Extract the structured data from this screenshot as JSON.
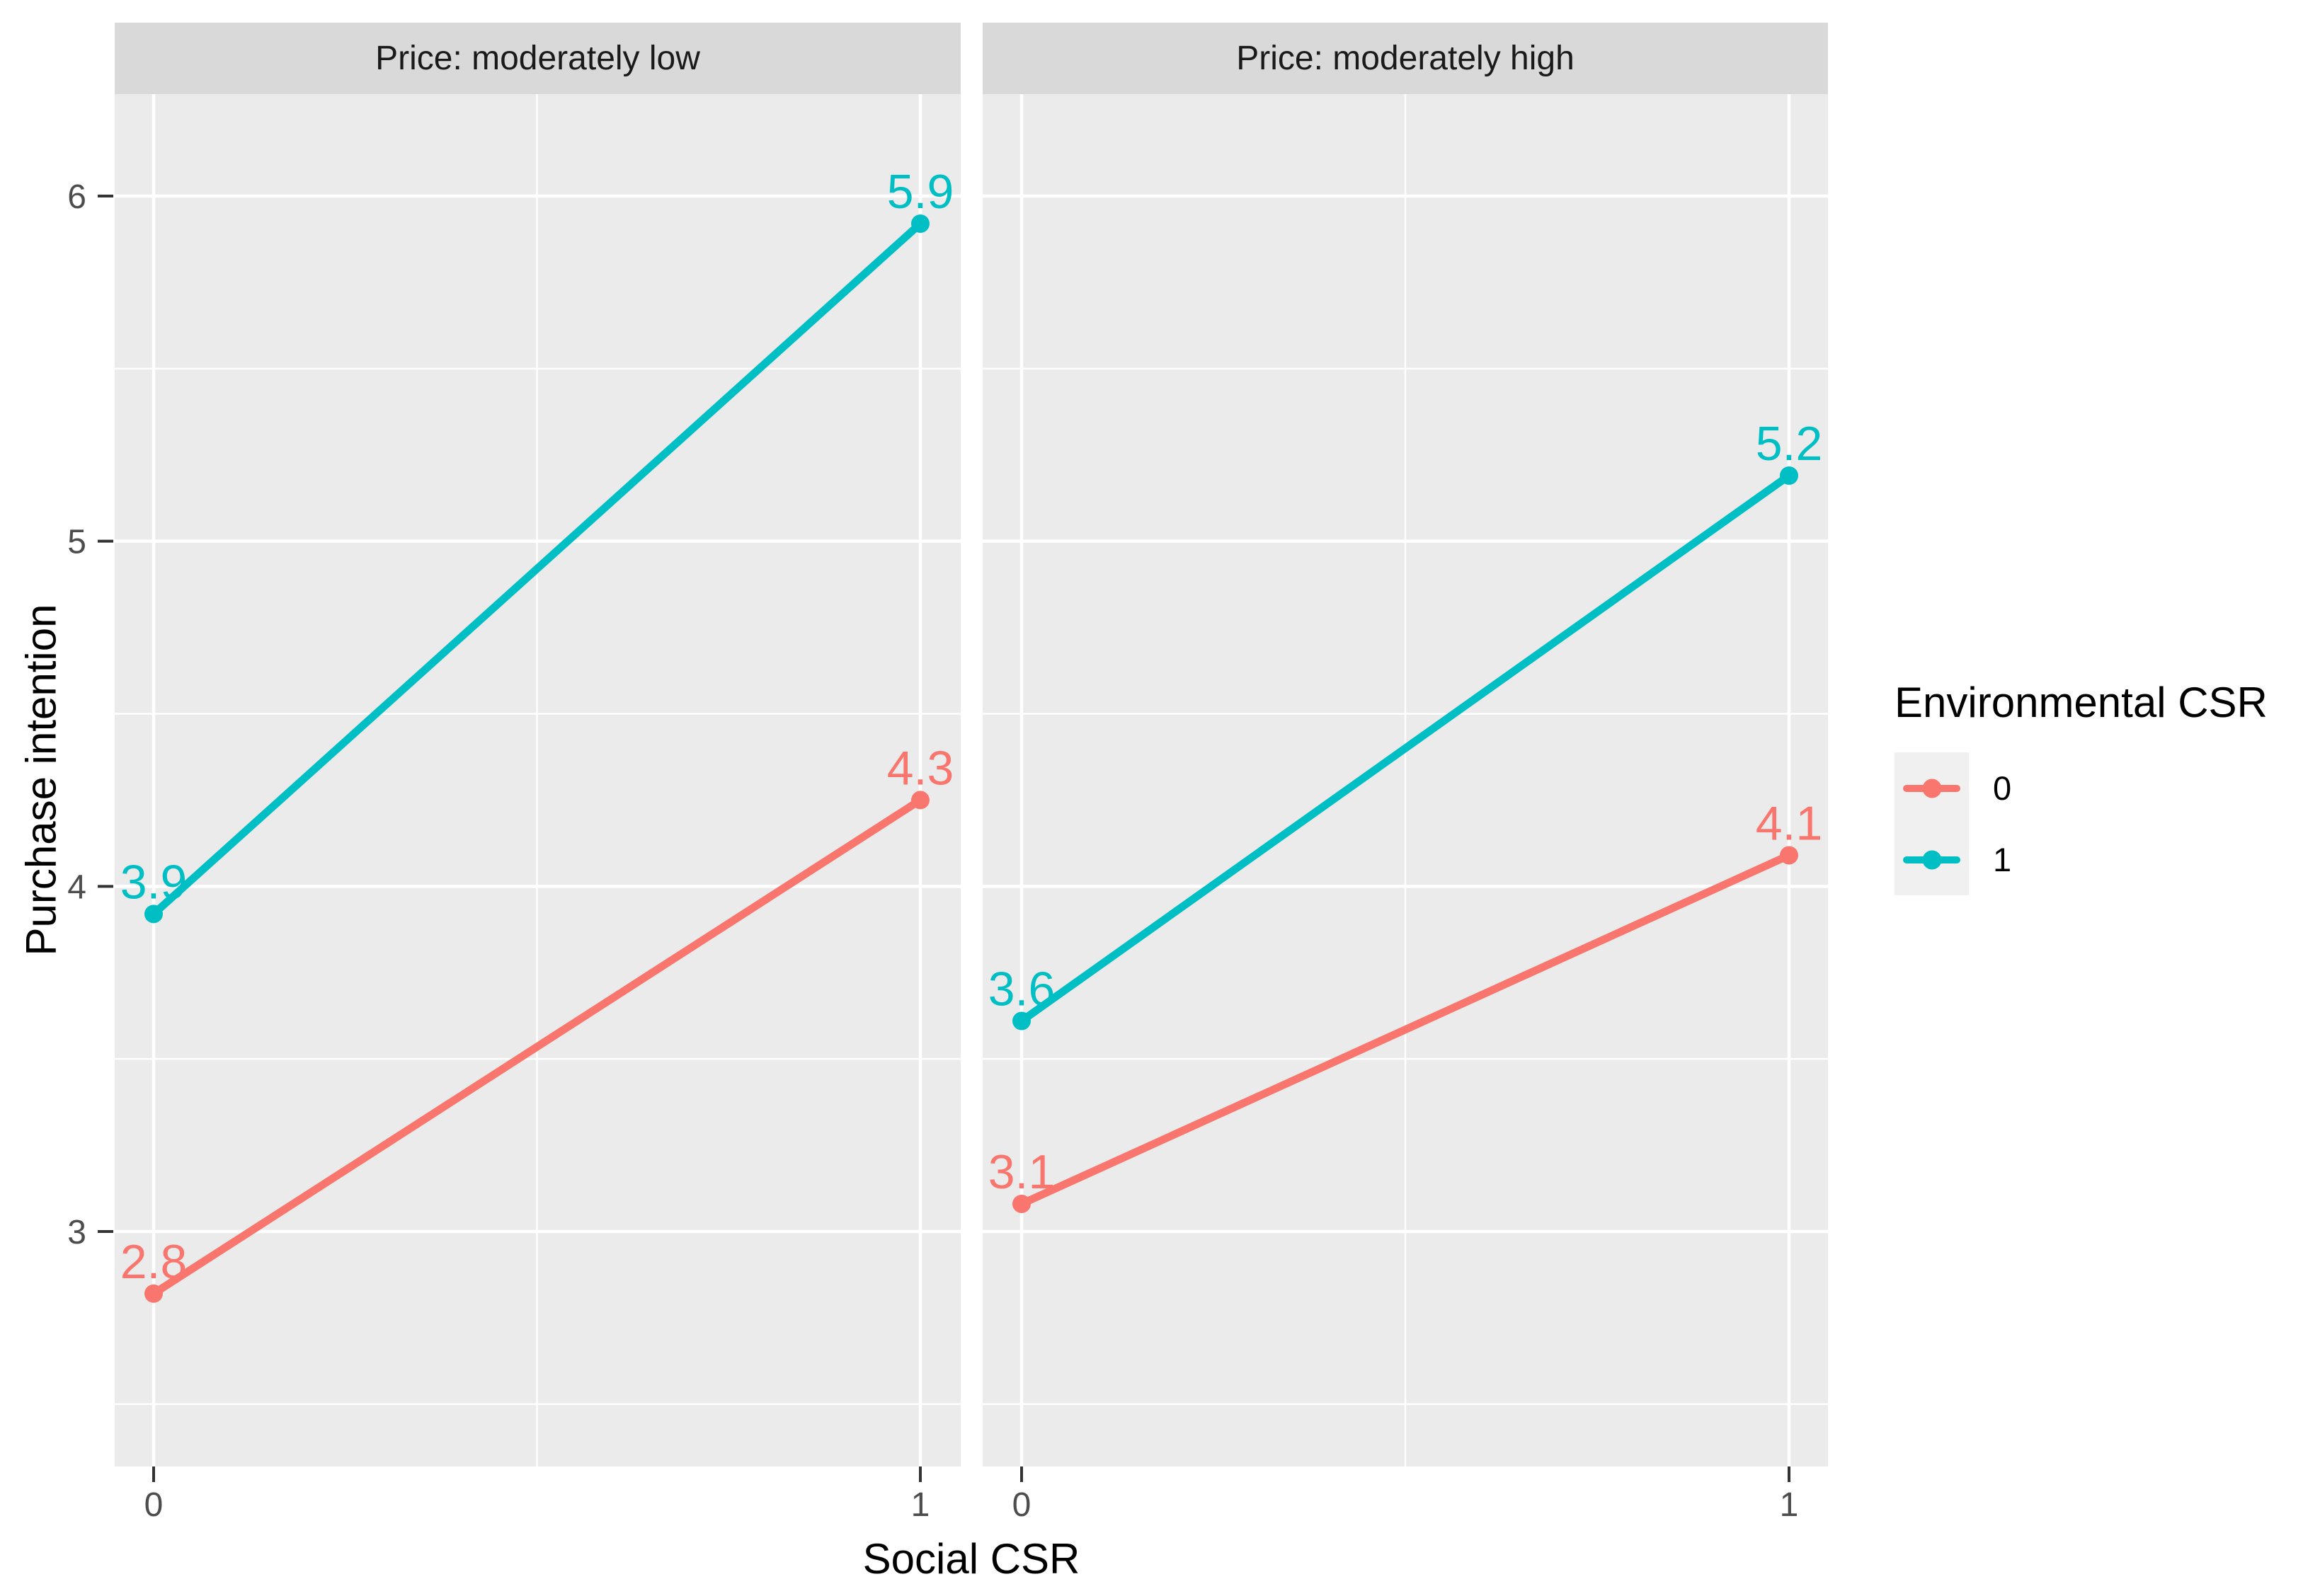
{
  "chart_data": {
    "type": "line",
    "facets": [
      {
        "strip": "Price: moderately low",
        "series": [
          {
            "name": "0",
            "color": "#F8766D",
            "points": [
              {
                "x": 0,
                "label": "2.8",
                "value": 2.82
              },
              {
                "x": 1,
                "label": "4.3",
                "value": 4.25
              }
            ]
          },
          {
            "name": "1",
            "color": "#00BFC4",
            "points": [
              {
                "x": 0,
                "label": "3.9",
                "value": 3.92
              },
              {
                "x": 1,
                "label": "5.9",
                "value": 5.92
              }
            ]
          }
        ]
      },
      {
        "strip": "Price: moderately high",
        "series": [
          {
            "name": "0",
            "color": "#F8766D",
            "points": [
              {
                "x": 0,
                "label": "3.1",
                "value": 3.08
              },
              {
                "x": 1,
                "label": "4.1",
                "value": 4.09
              }
            ]
          },
          {
            "name": "1",
            "color": "#00BFC4",
            "points": [
              {
                "x": 0,
                "label": "3.6",
                "value": 3.61
              },
              {
                "x": 1,
                "label": "5.2",
                "value": 5.19
              }
            ]
          }
        ]
      }
    ],
    "x": {
      "title": "Social CSR",
      "ticks": [
        "0",
        "1"
      ],
      "tick_values": [
        0,
        1
      ]
    },
    "y": {
      "title": "Purchase intention",
      "ticks": [
        "3",
        "4",
        "5",
        "6"
      ],
      "tick_values": [
        3,
        4,
        5,
        6
      ],
      "minor_tick_values": [
        2.5,
        3.5,
        4.5,
        5.5
      ]
    },
    "legend": {
      "title": "Environmental CSR",
      "entries": [
        {
          "label": "0",
          "color": "#F8766D"
        },
        {
          "label": "1",
          "color": "#00BFC4"
        }
      ]
    },
    "colors": {
      "panel_bg": "#EBEBEB",
      "strip_bg": "#D9D9D9",
      "strip_text": "#1A1A1A",
      "grid": "#FFFFFF",
      "tick": "#333333",
      "tick_label": "#4D4D4D",
      "legend_key_bg": "#F0F0F0"
    }
  }
}
